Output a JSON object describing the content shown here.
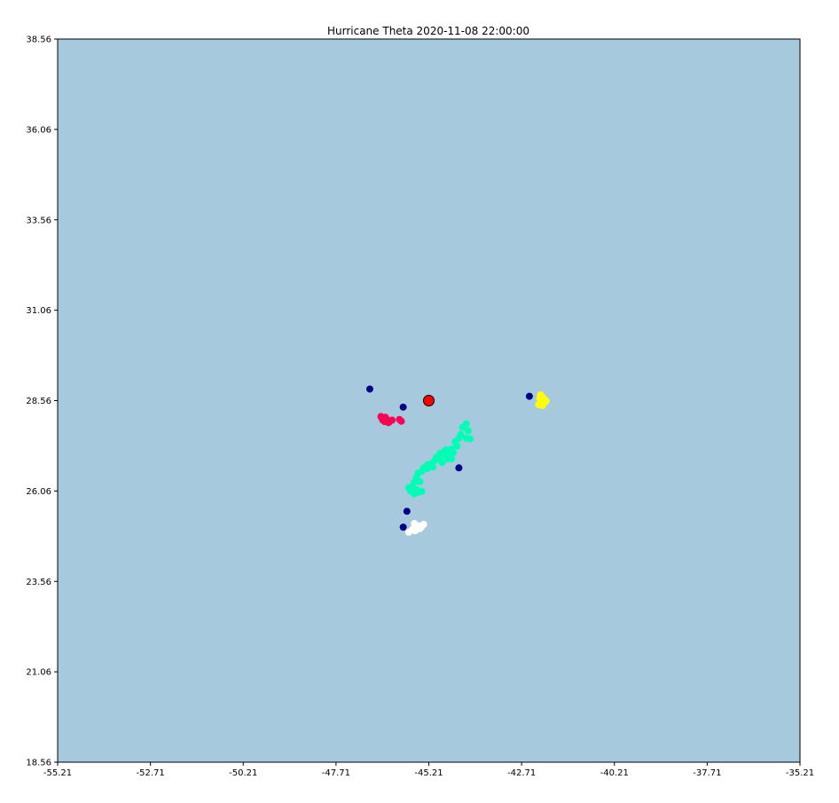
{
  "chart_data": {
    "type": "scatter",
    "title": "Hurricane Theta 2020-11-08 22:00:00",
    "xlabel": "",
    "ylabel": "",
    "xlim": [
      -55.21,
      -35.21
    ],
    "ylim": [
      18.56,
      38.56
    ],
    "x_ticks": [
      "-55.21",
      "-52.71",
      "-50.21",
      "-47.71",
      "-45.21",
      "-42.71",
      "-40.21",
      "-37.71",
      "-35.21"
    ],
    "y_ticks": [
      "38.56",
      "36.06",
      "33.56",
      "31.06",
      "28.56",
      "26.06",
      "23.56",
      "21.06",
      "18.56"
    ],
    "grid": false,
    "legend": "none",
    "colors": {
      "background": "#a6c9de",
      "frame": "#000000",
      "center_fill": "#ff0000",
      "center_edge": "#000000"
    },
    "center": {
      "x": -45.21,
      "y": 28.56
    },
    "series": [
      {
        "color": "#00008b",
        "points": [
          [
            -46.8,
            28.88
          ],
          [
            -45.9,
            28.38
          ],
          [
            -42.5,
            28.68
          ],
          [
            -44.4,
            26.7
          ],
          [
            -45.8,
            25.5
          ],
          [
            -45.9,
            25.06
          ]
        ]
      },
      {
        "color": "#ff0055",
        "points": [
          [
            -46.5,
            28.12
          ],
          [
            -46.45,
            28.02
          ],
          [
            -46.4,
            27.98
          ],
          [
            -46.35,
            28.05
          ],
          [
            -46.3,
            27.95
          ],
          [
            -46.25,
            28.0
          ],
          [
            -46.2,
            28.02
          ],
          [
            -46.48,
            28.08
          ],
          [
            -46.38,
            28.1
          ],
          [
            -46.28,
            27.96
          ],
          [
            -46.0,
            28.04
          ],
          [
            -45.95,
            27.99
          ]
        ]
      },
      {
        "color": "#ffff00",
        "points": [
          [
            -42.2,
            28.72
          ],
          [
            -42.15,
            28.66
          ],
          [
            -42.1,
            28.6
          ],
          [
            -42.2,
            28.52
          ],
          [
            -42.25,
            28.45
          ],
          [
            -42.15,
            28.42
          ],
          [
            -42.1,
            28.5
          ],
          [
            -42.18,
            28.58
          ],
          [
            -42.05,
            28.55
          ],
          [
            -42.22,
            28.62
          ]
        ]
      },
      {
        "color": "#00ffb4",
        "points": [
          [
            -44.2,
            27.92
          ],
          [
            -44.3,
            27.82
          ],
          [
            -44.15,
            27.72
          ],
          [
            -44.35,
            27.62
          ],
          [
            -44.4,
            27.52
          ],
          [
            -44.2,
            27.52
          ],
          [
            -44.5,
            27.42
          ],
          [
            -44.45,
            27.3
          ],
          [
            -44.6,
            27.22
          ],
          [
            -44.75,
            27.2
          ],
          [
            -44.65,
            27.12
          ],
          [
            -44.8,
            27.05
          ],
          [
            -44.9,
            27.1
          ],
          [
            -44.7,
            26.95
          ],
          [
            -44.95,
            26.95
          ],
          [
            -45.05,
            26.9
          ],
          [
            -44.85,
            26.85
          ],
          [
            -45.15,
            26.82
          ],
          [
            -45.25,
            26.78
          ],
          [
            -45.1,
            26.72
          ],
          [
            -45.35,
            26.7
          ],
          [
            -45.4,
            26.6
          ],
          [
            -45.5,
            26.55
          ],
          [
            -45.55,
            26.42
          ],
          [
            -45.45,
            26.32
          ],
          [
            -45.6,
            26.3
          ],
          [
            -45.65,
            26.2
          ],
          [
            -45.55,
            26.1
          ],
          [
            -45.5,
            26.02
          ],
          [
            -45.6,
            25.98
          ],
          [
            -45.7,
            26.05
          ],
          [
            -45.75,
            26.15
          ],
          [
            -45.4,
            26.05
          ],
          [
            -44.6,
            26.95
          ],
          [
            -44.55,
            27.12
          ],
          [
            -44.25,
            27.82
          ],
          [
            -44.1,
            27.5
          ],
          [
            -44.8,
            27.15
          ],
          [
            -45.0,
            27.0
          ],
          [
            -45.25,
            26.68
          ]
        ]
      },
      {
        "color": "#ffffff",
        "points": [
          [
            -45.6,
            25.16
          ],
          [
            -45.5,
            25.1
          ],
          [
            -45.45,
            25.02
          ],
          [
            -45.55,
            24.98
          ],
          [
            -45.4,
            25.08
          ],
          [
            -45.35,
            25.14
          ],
          [
            -45.65,
            25.0
          ],
          [
            -45.75,
            24.92
          ],
          [
            -45.58,
            24.96
          ]
        ]
      }
    ]
  }
}
